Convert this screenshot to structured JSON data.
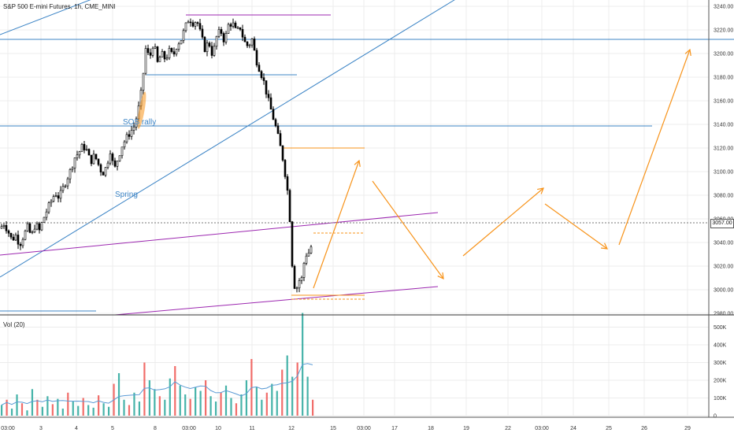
{
  "header": {
    "title": "S&P 500 E-mini Futures, 1h, CME_MINI"
  },
  "volume_panel": {
    "label": "Vol (20)"
  },
  "last_price_label": "3057.00",
  "annotations": {
    "spring": "Spring",
    "sos_rally": "SOS rally"
  },
  "colors": {
    "up": "#26a69a",
    "down": "#ef5350",
    "candle": "#000000",
    "trend_blue": "#3d85c6",
    "channel_purple": "#9c27b0",
    "forecast_orange": "#f7931a",
    "volume_ma": "#5b9bd5",
    "grid": "#ececec"
  },
  "chart_data": [
    {
      "type": "candlestick",
      "title": "S&P 500 E-mini Futures, 1h, CME_MINI",
      "y_axis_ticks": [
        "2980.00",
        "3000.00",
        "3020.00",
        "3040.00",
        "3060.00",
        "3080.00",
        "3100.00",
        "3120.00",
        "3140.00",
        "3160.00",
        "3180.00",
        "3200.00",
        "3220.00",
        "3240.00"
      ],
      "ylim": [
        2980,
        3240
      ],
      "x_axis_ticks": [
        "03:00",
        "3",
        "4",
        "5",
        "8",
        "03:00",
        "10",
        "11",
        "12",
        "15",
        "03:00",
        "17",
        "18",
        "19",
        "22",
        "03:00",
        "24",
        "25",
        "26",
        "29"
      ],
      "last_price": 3057.0,
      "price_path": [
        {
          "x": 0,
          "p": 3052
        },
        {
          "x": 5,
          "p": 3056
        },
        {
          "x": 10,
          "p": 3050
        },
        {
          "x": 15,
          "p": 3042
        },
        {
          "x": 20,
          "p": 3046
        },
        {
          "x": 25,
          "p": 3038
        },
        {
          "x": 30,
          "p": 3046
        },
        {
          "x": 35,
          "p": 3053
        },
        {
          "x": 40,
          "p": 3045
        },
        {
          "x": 45,
          "p": 3056
        },
        {
          "x": 50,
          "p": 3050
        },
        {
          "x": 55,
          "p": 3060
        },
        {
          "x": 60,
          "p": 3068
        },
        {
          "x": 65,
          "p": 3075
        },
        {
          "x": 70,
          "p": 3082
        },
        {
          "x": 75,
          "p": 3078
        },
        {
          "x": 80,
          "p": 3086
        },
        {
          "x": 85,
          "p": 3094
        },
        {
          "x": 90,
          "p": 3102
        },
        {
          "x": 95,
          "p": 3112
        },
        {
          "x": 100,
          "p": 3116
        },
        {
          "x": 105,
          "p": 3122
        },
        {
          "x": 110,
          "p": 3118
        },
        {
          "x": 115,
          "p": 3108
        },
        {
          "x": 120,
          "p": 3114
        },
        {
          "x": 125,
          "p": 3106
        },
        {
          "x": 130,
          "p": 3098
        },
        {
          "x": 135,
          "p": 3104
        },
        {
          "x": 140,
          "p": 3118
        },
        {
          "x": 145,
          "p": 3101
        },
        {
          "x": 150,
          "p": 3112
        },
        {
          "x": 155,
          "p": 3122
        },
        {
          "x": 160,
          "p": 3128
        },
        {
          "x": 165,
          "p": 3133
        },
        {
          "x": 170,
          "p": 3138
        },
        {
          "x": 175,
          "p": 3150
        },
        {
          "x": 180,
          "p": 3170
        },
        {
          "x": 185,
          "p": 3204
        },
        {
          "x": 190,
          "p": 3196
        },
        {
          "x": 195,
          "p": 3210
        },
        {
          "x": 200,
          "p": 3192
        },
        {
          "x": 205,
          "p": 3200
        },
        {
          "x": 210,
          "p": 3195
        },
        {
          "x": 215,
          "p": 3202
        },
        {
          "x": 220,
          "p": 3198
        },
        {
          "x": 225,
          "p": 3208
        },
        {
          "x": 230,
          "p": 3212
        },
        {
          "x": 235,
          "p": 3222
        },
        {
          "x": 240,
          "p": 3230
        },
        {
          "x": 245,
          "p": 3226
        },
        {
          "x": 250,
          "p": 3228
        },
        {
          "x": 255,
          "p": 3216
        },
        {
          "x": 260,
          "p": 3204
        },
        {
          "x": 265,
          "p": 3210
        },
        {
          "x": 270,
          "p": 3198
        },
        {
          "x": 275,
          "p": 3214
        },
        {
          "x": 280,
          "p": 3220
        },
        {
          "x": 285,
          "p": 3210
        },
        {
          "x": 290,
          "p": 3224
        },
        {
          "x": 295,
          "p": 3226
        },
        {
          "x": 300,
          "p": 3218
        },
        {
          "x": 305,
          "p": 3222
        },
        {
          "x": 310,
          "p": 3210
        },
        {
          "x": 315,
          "p": 3206
        },
        {
          "x": 320,
          "p": 3212
        },
        {
          "x": 325,
          "p": 3195
        },
        {
          "x": 330,
          "p": 3186
        },
        {
          "x": 335,
          "p": 3176
        },
        {
          "x": 340,
          "p": 3162
        },
        {
          "x": 345,
          "p": 3150
        },
        {
          "x": 350,
          "p": 3138
        },
        {
          "x": 355,
          "p": 3124
        },
        {
          "x": 360,
          "p": 3108
        },
        {
          "x": 365,
          "p": 3084
        },
        {
          "x": 368,
          "p": 3060
        },
        {
          "x": 370,
          "p": 3030
        },
        {
          "x": 373,
          "p": 3006
        },
        {
          "x": 376,
          "p": 2998
        },
        {
          "x": 379,
          "p": 3010
        },
        {
          "x": 382,
          "p": 3004
        },
        {
          "x": 385,
          "p": 3020
        },
        {
          "x": 388,
          "p": 3028
        },
        {
          "x": 391,
          "p": 3034
        },
        {
          "x": 394,
          "p": 3026
        },
        {
          "x": 397,
          "p": 3057
        }
      ],
      "annotations": [
        "Spring",
        "SOS rally"
      ]
    },
    {
      "type": "bar",
      "title": "Vol (20)",
      "y_axis_ticks": [
        "0",
        "100K",
        "200K",
        "300K",
        "400K",
        "500K"
      ],
      "ylim": [
        0,
        560000
      ],
      "values": [
        60000,
        90000,
        40000,
        120000,
        70000,
        30000,
        150000,
        90000,
        50000,
        110000,
        65000,
        95000,
        40000,
        130000,
        80000,
        55000,
        100000,
        60000,
        45000,
        115000,
        70000,
        50000,
        180000,
        240000,
        90000,
        60000,
        130000,
        80000,
        300000,
        200000,
        150000,
        110000,
        90000,
        210000,
        280000,
        170000,
        120000,
        95000,
        160000,
        140000,
        200000,
        110000,
        80000,
        130000,
        170000,
        100000,
        70000,
        120000,
        200000,
        320000,
        160000,
        90000,
        130000,
        180000,
        140000,
        260000,
        340000,
        220000,
        300000,
        580000,
        220000,
        90000
      ]
    }
  ]
}
